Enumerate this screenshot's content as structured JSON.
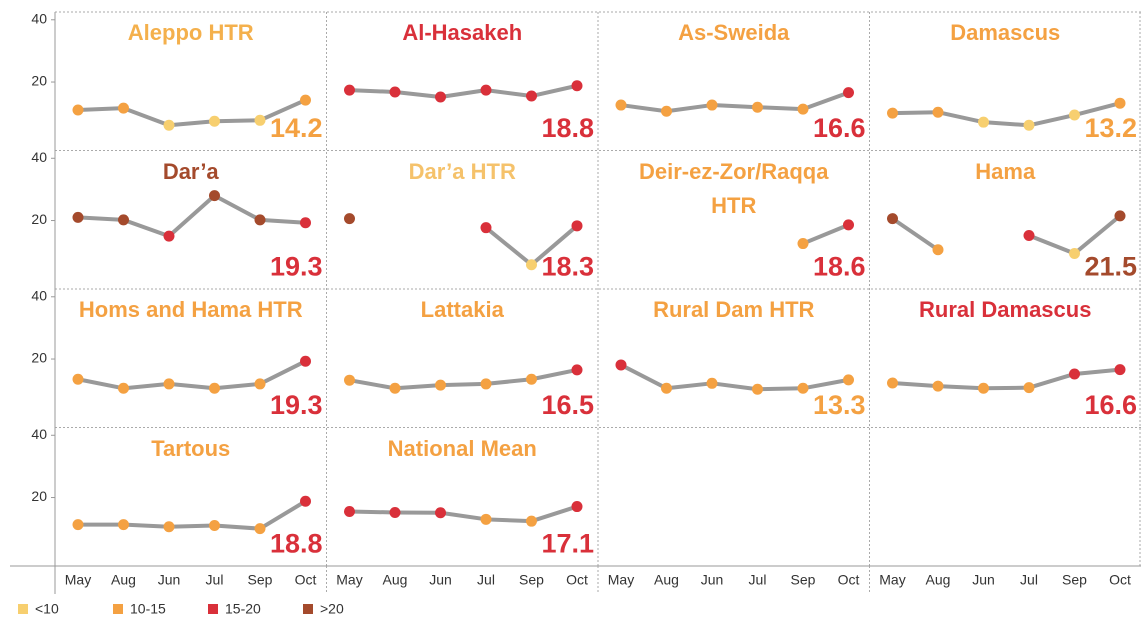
{
  "chart_data": {
    "type": "line",
    "categories": [
      "May",
      "Aug",
      "Jun",
      "Jul",
      "Sep",
      "Oct"
    ],
    "ylim": [
      -2,
      42.5
    ],
    "yticks": [
      20,
      40
    ],
    "line_color": "#999999",
    "legend_position": "bottom-left",
    "legend": [
      {
        "label": "<10",
        "color": "#f7cf6f"
      },
      {
        "label": "10-15",
        "color": "#f4a142"
      },
      {
        "label": "15-20",
        "color": "#d9303a"
      },
      {
        "label": ">20",
        "color": "#a44a2c"
      }
    ],
    "panels": [
      {
        "title": "Aleppo HTR",
        "title_color": "#f4b04c",
        "values": [
          11,
          11.6,
          6.1,
          7.4,
          7.7,
          14.2
        ],
        "colors": [
          "#f4a142",
          "#f4a142",
          "#f7cf6f",
          "#f7cf6f",
          "#f7cf6f",
          "#f4a142"
        ]
      },
      {
        "title": "Al-Hasakeh",
        "title_color": "#d9303a",
        "values": [
          17.4,
          16.8,
          15.2,
          17.4,
          15.5,
          18.8
        ],
        "colors": [
          "#d9303a",
          "#d9303a",
          "#d9303a",
          "#d9303a",
          "#d9303a",
          "#d9303a"
        ]
      },
      {
        "title": "As-Sweida",
        "title_color": "#f4a142",
        "values": [
          12.6,
          10.6,
          12.6,
          11.9,
          11.3,
          16.6
        ],
        "colors": [
          "#f4a142",
          "#f4a142",
          "#f4a142",
          "#f4a142",
          "#f4a142",
          "#d9303a"
        ]
      },
      {
        "title": "Damascus",
        "title_color": "#f4a142",
        "values": [
          10,
          10.3,
          7.1,
          6.1,
          9.4,
          13.2
        ],
        "colors": [
          "#f4a142",
          "#f4a142",
          "#f7cf6f",
          "#f7cf6f",
          "#f7cf6f",
          "#f4a142"
        ]
      },
      {
        "title": "Dar’a",
        "title_color": "#a44a2c",
        "values": [
          21,
          20.2,
          15,
          28,
          20.2,
          19.3
        ],
        "colors": [
          "#a44a2c",
          "#a44a2c",
          "#d9303a",
          "#a44a2c",
          "#a44a2c",
          "#d9303a"
        ]
      },
      {
        "title": "Dar’a HTR",
        "title_color": "#f5c26b",
        "values": [
          20.6,
          null,
          null,
          17.7,
          5.8,
          18.3
        ],
        "colors": [
          "#a44a2c",
          null,
          null,
          "#d9303a",
          "#f7cf6f",
          "#d9303a"
        ]
      },
      {
        "title": "Deir-ez-Zor/Raqqa HTR",
        "title_color": "#f4a142",
        "values": [
          null,
          null,
          null,
          null,
          12.6,
          18.6
        ],
        "colors": [
          null,
          null,
          null,
          null,
          "#f4a142",
          "#d9303a"
        ]
      },
      {
        "title": "Hama",
        "title_color": "#f4a142",
        "values": [
          20.6,
          10.6,
          null,
          15.2,
          9.4,
          21.5
        ],
        "colors": [
          "#a44a2c",
          "#f4a142",
          null,
          "#d9303a",
          "#f7cf6f",
          "#a44a2c"
        ]
      },
      {
        "title": "Homs and Hama HTR",
        "title_color": "#f4a142",
        "values": [
          13.5,
          10.6,
          12,
          10.6,
          12,
          19.3
        ],
        "colors": [
          "#f4a142",
          "#f4a142",
          "#f4a142",
          "#f4a142",
          "#f4a142",
          "#d9303a"
        ]
      },
      {
        "title": "Lattakia",
        "title_color": "#f4a142",
        "values": [
          13.2,
          10.6,
          11.6,
          12,
          13.5,
          16.5
        ],
        "colors": [
          "#f4a142",
          "#f4a142",
          "#f4a142",
          "#f4a142",
          "#f4a142",
          "#d9303a"
        ]
      },
      {
        "title": "Rural Dam HTR",
        "title_color": "#f4a142",
        "values": [
          18.1,
          10.6,
          12.2,
          10.3,
          10.6,
          13.3
        ],
        "colors": [
          "#d9303a",
          "#f4a142",
          "#f4a142",
          "#f4a142",
          "#f4a142",
          "#f4a142"
        ]
      },
      {
        "title": "Rural Damascus",
        "title_color": "#d9303a",
        "values": [
          12.3,
          11.3,
          10.6,
          10.8,
          15.2,
          16.6
        ],
        "colors": [
          "#f4a142",
          "#f4a142",
          "#f4a142",
          "#f4a142",
          "#d9303a",
          "#d9303a"
        ]
      },
      {
        "title": "Tartous",
        "title_color": "#f4a142",
        "values": [
          11.3,
          11.3,
          10.6,
          11,
          10,
          18.8
        ],
        "colors": [
          "#f4a142",
          "#f4a142",
          "#f4a142",
          "#f4a142",
          "#f4a142",
          "#d9303a"
        ]
      },
      {
        "title": "National Mean",
        "title_color": "#f4a142",
        "values": [
          15.5,
          15.2,
          15.1,
          13,
          12.4,
          17.1
        ],
        "colors": [
          "#d9303a",
          "#d9303a",
          "#d9303a",
          "#f4a142",
          "#f4a142",
          "#d9303a"
        ]
      }
    ]
  }
}
